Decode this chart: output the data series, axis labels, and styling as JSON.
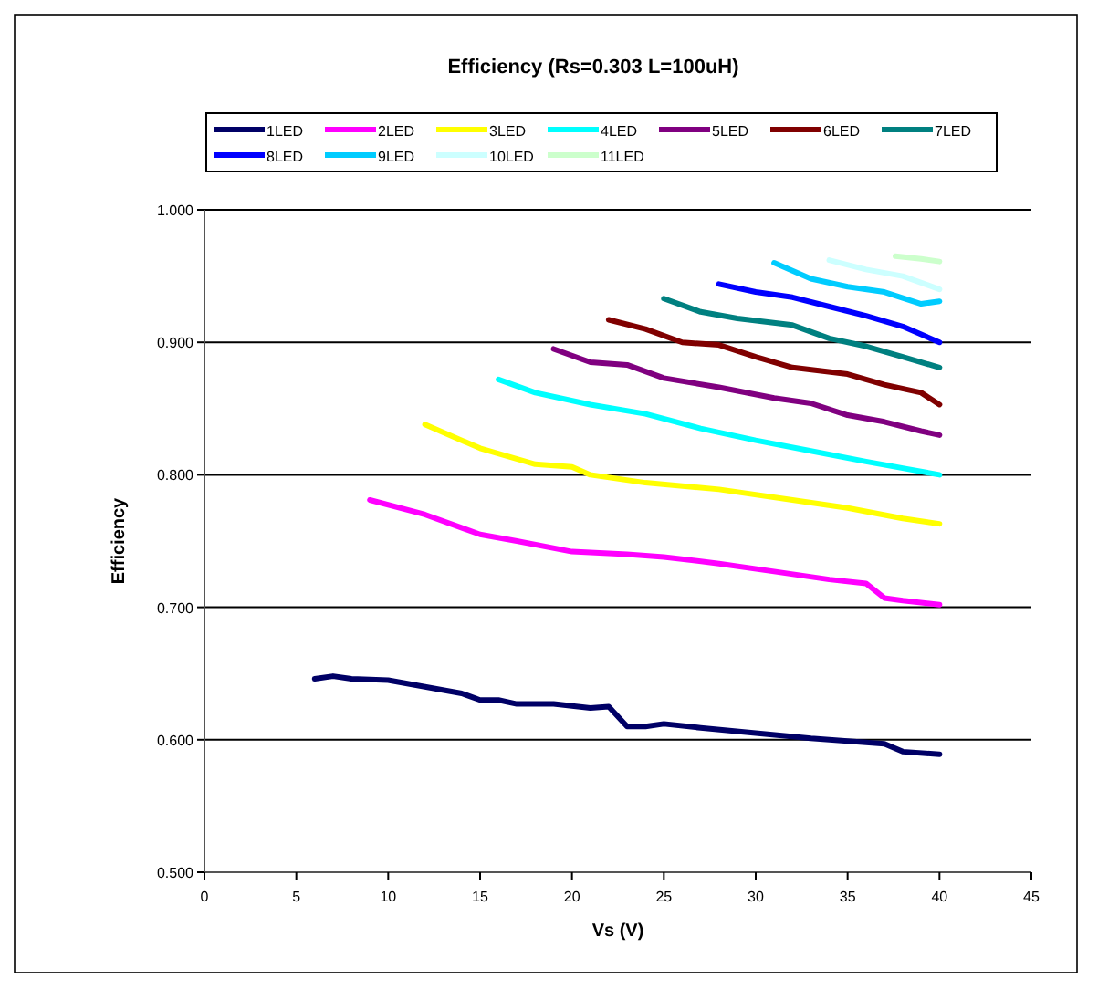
{
  "chart_data": {
    "type": "line",
    "title": "Efficiency (Rs=0.303 L=100uH)",
    "xlabel": "Vs (V)",
    "ylabel": "Efficiency",
    "xlim": [
      0,
      45
    ],
    "xticks": [
      0,
      5,
      10,
      15,
      20,
      25,
      30,
      35,
      40,
      45
    ],
    "ylim": [
      0.5,
      1.0
    ],
    "yticks": [
      {
        "value": 0.5,
        "label": "0.500"
      },
      {
        "value": 0.6,
        "label": "0.600"
      },
      {
        "value": 0.7,
        "label": "0.700"
      },
      {
        "value": 0.8,
        "label": "0.800"
      },
      {
        "value": 0.9,
        "label": "0.900"
      },
      {
        "value": 1.0,
        "label": "1.000"
      }
    ],
    "grid": "y",
    "legend": "top",
    "marker": "none",
    "line_style": "solid",
    "series": [
      {
        "name": "1LED",
        "color": "#000066",
        "x": [
          6,
          7,
          8,
          10,
          12,
          14,
          15,
          16,
          17,
          19,
          21,
          22,
          23,
          24,
          25,
          27,
          30,
          33,
          35,
          37,
          38,
          40
        ],
        "values": [
          0.646,
          0.648,
          0.646,
          0.645,
          0.64,
          0.635,
          0.63,
          0.63,
          0.627,
          0.627,
          0.624,
          0.625,
          0.61,
          0.61,
          0.612,
          0.609,
          0.605,
          0.601,
          0.599,
          0.597,
          0.591,
          0.589
        ]
      },
      {
        "name": "2LED",
        "color": "#ff00ff",
        "x": [
          9,
          12,
          15,
          17,
          20,
          23,
          25,
          28,
          31,
          34,
          36,
          37,
          38,
          40
        ],
        "values": [
          0.781,
          0.77,
          0.755,
          0.75,
          0.742,
          0.74,
          0.738,
          0.733,
          0.727,
          0.721,
          0.718,
          0.707,
          0.705,
          0.702
        ]
      },
      {
        "name": "3LED",
        "color": "#ffff00",
        "x": [
          12,
          15,
          18,
          20,
          21,
          24,
          28,
          32,
          35,
          38,
          40
        ],
        "values": [
          0.838,
          0.82,
          0.808,
          0.806,
          0.8,
          0.794,
          0.789,
          0.781,
          0.775,
          0.767,
          0.763
        ]
      },
      {
        "name": "4LED",
        "color": "#00ffff",
        "x": [
          16,
          18,
          21,
          24,
          27,
          30,
          33,
          36,
          38,
          40
        ],
        "values": [
          0.872,
          0.862,
          0.853,
          0.846,
          0.835,
          0.826,
          0.818,
          0.81,
          0.805,
          0.8
        ]
      },
      {
        "name": "5LED",
        "color": "#800080",
        "x": [
          19,
          21,
          23,
          25,
          28,
          31,
          33,
          35,
          37,
          39,
          40
        ],
        "values": [
          0.895,
          0.885,
          0.883,
          0.873,
          0.866,
          0.858,
          0.854,
          0.845,
          0.84,
          0.833,
          0.83
        ]
      },
      {
        "name": "6LED",
        "color": "#800000",
        "x": [
          22,
          24,
          26,
          28,
          30,
          32,
          35,
          37,
          39,
          40
        ],
        "values": [
          0.917,
          0.91,
          0.9,
          0.898,
          0.889,
          0.881,
          0.876,
          0.868,
          0.862,
          0.853
        ]
      },
      {
        "name": "7LED",
        "color": "#008080",
        "x": [
          25,
          27,
          29,
          32,
          34,
          36,
          38,
          40
        ],
        "values": [
          0.933,
          0.923,
          0.918,
          0.913,
          0.903,
          0.897,
          0.889,
          0.881
        ]
      },
      {
        "name": "8LED",
        "color": "#0000ff",
        "x": [
          28,
          30,
          32,
          34,
          36,
          38,
          40
        ],
        "values": [
          0.944,
          0.938,
          0.934,
          0.927,
          0.92,
          0.912,
          0.9
        ]
      },
      {
        "name": "9LED",
        "color": "#00ccff",
        "x": [
          31,
          33,
          35,
          37,
          39,
          40
        ],
        "values": [
          0.96,
          0.948,
          0.942,
          0.938,
          0.929,
          0.931
        ]
      },
      {
        "name": "10LED",
        "color": "#ccffff",
        "x": [
          34,
          36,
          38,
          40
        ],
        "values": [
          0.962,
          0.955,
          0.95,
          0.94
        ]
      },
      {
        "name": "11LED",
        "color": "#ccffcc",
        "x": [
          37.6,
          39,
          40
        ],
        "values": [
          0.965,
          0.963,
          0.961
        ]
      }
    ]
  }
}
